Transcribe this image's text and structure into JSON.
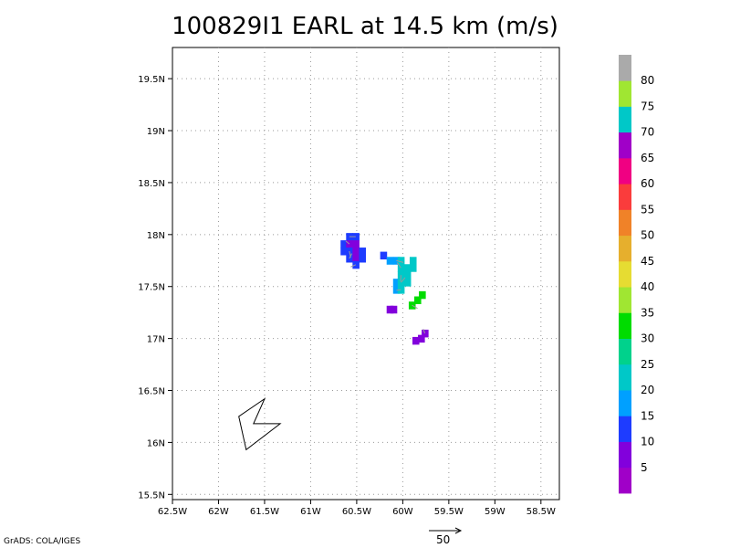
{
  "title": "100829I1 EARL at 14.5 km (m/s)",
  "credit": "GrADS: COLA/IGES",
  "vector_scale_label": "50",
  "chart_data": {
    "type": "heatmap",
    "title": "100829I1 EARL at 14.5 km (m/s)",
    "x_ticks": [
      -62.5,
      -62,
      -61.5,
      -61,
      -60.5,
      -60,
      -59.5,
      -59,
      -58.5
    ],
    "x_tick_labels": [
      "62.5W",
      "62W",
      "61.5W",
      "61W",
      "60.5W",
      "60W",
      "59.5W",
      "59W",
      "58.5W"
    ],
    "y_ticks": [
      15.5,
      16,
      16.5,
      17,
      17.5,
      18,
      18.5,
      19,
      19.5
    ],
    "y_tick_labels": [
      "15.5N",
      "16N",
      "16.5N",
      "17N",
      "17.5N",
      "18N",
      "18.5N",
      "19N",
      "19.5N"
    ],
    "xlim": [
      -62.5,
      -58.3
    ],
    "ylim": [
      15.45,
      19.8
    ],
    "grid": true,
    "colorbar": {
      "labels": [
        "5",
        "10",
        "15",
        "20",
        "25",
        "30",
        "35",
        "40",
        "45",
        "50",
        "55",
        "60",
        "65",
        "70",
        "75",
        "80"
      ],
      "colors": [
        "#a000c8",
        "#8200dc",
        "#1e3cff",
        "#00a0ff",
        "#00c8c8",
        "#00d28c",
        "#00dc00",
        "#a0e632",
        "#e6dc32",
        "#e6af2d",
        "#f08228",
        "#fa3c3c",
        "#f00082",
        "#a000c8",
        "#00c8c8",
        "#a0e632",
        "#aaaaaa"
      ]
    },
    "cells": [
      {
        "lon": -60.58,
        "lat": 17.98,
        "v": 14
      },
      {
        "lon": -60.51,
        "lat": 17.98,
        "v": 14
      },
      {
        "lon": -60.64,
        "lat": 17.91,
        "v": 13
      },
      {
        "lon": -60.58,
        "lat": 17.91,
        "v": 8
      },
      {
        "lon": -60.51,
        "lat": 17.91,
        "v": 9
      },
      {
        "lon": -60.64,
        "lat": 17.84,
        "v": 13
      },
      {
        "lon": -60.58,
        "lat": 17.84,
        "v": 14
      },
      {
        "lon": -60.51,
        "lat": 17.84,
        "v": 8
      },
      {
        "lon": -60.44,
        "lat": 17.84,
        "v": 13
      },
      {
        "lon": -60.58,
        "lat": 17.77,
        "v": 13
      },
      {
        "lon": -60.51,
        "lat": 17.77,
        "v": 8
      },
      {
        "lon": -60.44,
        "lat": 17.77,
        "v": 13
      },
      {
        "lon": -60.51,
        "lat": 17.71,
        "v": 13
      },
      {
        "lon": -60.21,
        "lat": 17.8,
        "v": 14
      },
      {
        "lon": -60.14,
        "lat": 17.75,
        "v": 19
      },
      {
        "lon": -60.07,
        "lat": 17.75,
        "v": 19
      },
      {
        "lon": -60.02,
        "lat": 17.75,
        "v": 22
      },
      {
        "lon": -59.89,
        "lat": 17.75,
        "v": 20
      },
      {
        "lon": -60.02,
        "lat": 17.68,
        "v": 22
      },
      {
        "lon": -59.95,
        "lat": 17.68,
        "v": 21
      },
      {
        "lon": -59.89,
        "lat": 17.68,
        "v": 20
      },
      {
        "lon": -60.02,
        "lat": 17.61,
        "v": 22
      },
      {
        "lon": -59.95,
        "lat": 17.61,
        "v": 23
      },
      {
        "lon": -60.07,
        "lat": 17.54,
        "v": 19
      },
      {
        "lon": -60.02,
        "lat": 17.54,
        "v": 22
      },
      {
        "lon": -59.95,
        "lat": 17.54,
        "v": 22
      },
      {
        "lon": -60.07,
        "lat": 17.47,
        "v": 19
      },
      {
        "lon": -60.02,
        "lat": 17.47,
        "v": 20
      },
      {
        "lon": -59.79,
        "lat": 17.42,
        "v": 33
      },
      {
        "lon": -59.84,
        "lat": 17.37,
        "v": 33
      },
      {
        "lon": -59.9,
        "lat": 17.32,
        "v": 34
      },
      {
        "lon": -60.14,
        "lat": 17.28,
        "v": 8
      },
      {
        "lon": -60.1,
        "lat": 17.28,
        "v": 8
      },
      {
        "lon": -59.76,
        "lat": 17.05,
        "v": 8
      },
      {
        "lon": -59.8,
        "lat": 17.0,
        "v": 8
      },
      {
        "lon": -59.86,
        "lat": 16.98,
        "v": 8
      }
    ],
    "track": [
      [
        -61.5,
        16.42
      ],
      [
        -61.78,
        16.25
      ],
      [
        -61.7,
        15.93
      ],
      [
        -61.33,
        16.18
      ],
      [
        -61.62,
        16.18
      ]
    ]
  }
}
